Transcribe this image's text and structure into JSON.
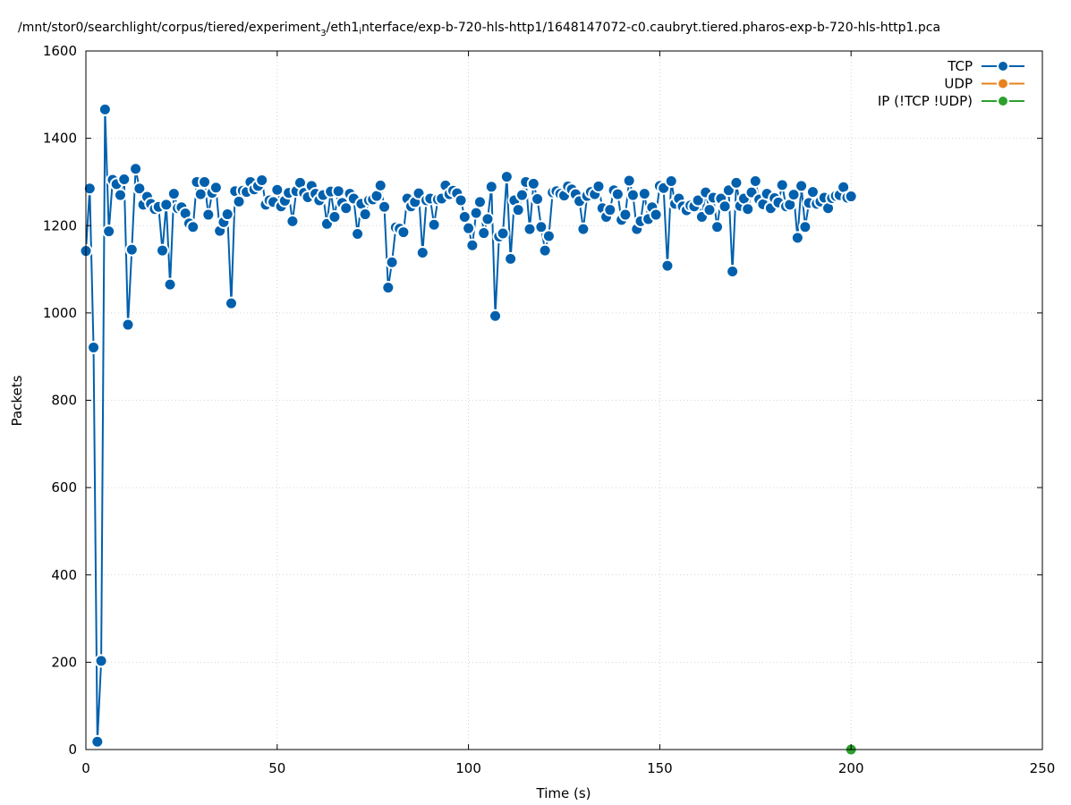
{
  "chart_data": {
    "type": "line",
    "title": "/mnt/stor0/searchlight/corpus/tiered/experiment",
    "title_sub": "3",
    "title_mid": "/eth1",
    "title_sub2": "i",
    "title_end": "nterface/exp-b-720-hls-http1/1648147072-c0.caubryt.tiered.pharos-exp-b-720-hls-http1.pca",
    "xlabel": "Time (s)",
    "ylabel": "Packets",
    "xlim": [
      0,
      250
    ],
    "ylim": [
      0,
      1600
    ],
    "xticks": [
      "0",
      "50",
      "100",
      "150",
      "200",
      "250"
    ],
    "yticks": [
      "0",
      "200",
      "400",
      "600",
      "800",
      "1000",
      "1200",
      "1400",
      "1600"
    ],
    "grid": true,
    "legend_position": "top-right",
    "series": [
      {
        "name": "TCP",
        "color": "#0060ad",
        "x": [
          0,
          1,
          2,
          3,
          4,
          5,
          6,
          7,
          8,
          9,
          10,
          11,
          12,
          13,
          14,
          15,
          16,
          17,
          18,
          19,
          20,
          21,
          22,
          23,
          24,
          25,
          26,
          27,
          28,
          29,
          30,
          31,
          32,
          33,
          34,
          35,
          36,
          37,
          38,
          39,
          40,
          41,
          42,
          43,
          44,
          45,
          46,
          47,
          48,
          49,
          50,
          51,
          52,
          53,
          54,
          55,
          56,
          57,
          58,
          59,
          60,
          61,
          62,
          63,
          64,
          65,
          66,
          67,
          68,
          69,
          70,
          71,
          72,
          73,
          74,
          75,
          76,
          77,
          78,
          79,
          80,
          81,
          82,
          83,
          84,
          85,
          86,
          87,
          88,
          89,
          90,
          91,
          92,
          93,
          94,
          95,
          96,
          97,
          98,
          99,
          100,
          101,
          102,
          103,
          104,
          105,
          106,
          107,
          108,
          109,
          110,
          111,
          112,
          113,
          114,
          115,
          116,
          117,
          118,
          119,
          120,
          121,
          122,
          123,
          124,
          125,
          126,
          127,
          128,
          129,
          130,
          131,
          132,
          133,
          134,
          135,
          136,
          137,
          138,
          139,
          140,
          141,
          142,
          143,
          144,
          145,
          146,
          147,
          148,
          149,
          150,
          151,
          152,
          153,
          154,
          155,
          156,
          157,
          158,
          159,
          160,
          161,
          162,
          163,
          164,
          165,
          166,
          167,
          168,
          169,
          170,
          171,
          172,
          173,
          174,
          175,
          176,
          177,
          178,
          179,
          180,
          181,
          182,
          183,
          184,
          185,
          186,
          187,
          188,
          189,
          190,
          191,
          192,
          193,
          194,
          195,
          196,
          197,
          198,
          199,
          200
        ],
        "values": [
          1142,
          1285,
          921,
          18,
          203,
          1466,
          1187,
          1305,
          1295,
          1270,
          1306,
          973,
          1145,
          1330,
          1285,
          1248,
          1266,
          1250,
          1238,
          1243,
          1143,
          1248,
          1065,
          1273,
          1240,
          1242,
          1228,
          1205,
          1197,
          1300,
          1272,
          1300,
          1225,
          1275,
          1287,
          1188,
          1208,
          1226,
          1022,
          1279,
          1255,
          1280,
          1277,
          1300,
          1283,
          1291,
          1304,
          1248,
          1258,
          1254,
          1282,
          1244,
          1257,
          1275,
          1210,
          1279,
          1298,
          1275,
          1265,
          1291,
          1273,
          1258,
          1270,
          1204,
          1278,
          1220,
          1279,
          1252,
          1240,
          1273,
          1262,
          1181,
          1250,
          1226,
          1258,
          1260,
          1268,
          1292,
          1243,
          1058,
          1116,
          1196,
          1193,
          1185,
          1262,
          1244,
          1254,
          1274,
          1138,
          1258,
          1262,
          1202,
          1260,
          1262,
          1292,
          1272,
          1280,
          1274,
          1258,
          1220,
          1194,
          1155,
          1229,
          1254,
          1183,
          1215,
          1289,
          993,
          1175,
          1182,
          1312,
          1124,
          1258,
          1236,
          1270,
          1300,
          1192,
          1296,
          1261,
          1197,
          1143,
          1176,
          1276,
          1279,
          1273,
          1269,
          1290,
          1283,
          1272,
          1256,
          1192,
          1268,
          1277,
          1272,
          1290,
          1240,
          1220,
          1236,
          1281,
          1272,
          1213,
          1225,
          1303,
          1270,
          1192,
          1210,
          1273,
          1215,
          1242,
          1225,
          1291,
          1286,
          1108,
          1302,
          1250,
          1262,
          1244,
          1235,
          1246,
          1244,
          1258,
          1220,
          1276,
          1236,
          1264,
          1197,
          1262,
          1244,
          1281,
          1095,
          1298,
          1245,
          1262,
          1238,
          1276,
          1302,
          1260,
          1249,
          1273,
          1240,
          1263,
          1253,
          1293,
          1244,
          1248,
          1271,
          1172,
          1291,
          1197,
          1252,
          1277,
          1250,
          1255,
          1264,
          1240,
          1263,
          1268,
          1270,
          1288,
          1264,
          1267
        ]
      },
      {
        "name": "UDP",
        "color": "#e8821e",
        "x": [],
        "values": []
      },
      {
        "name": "IP (!TCP  !UDP)",
        "color": "#2ca02c",
        "x": [
          200
        ],
        "values": [
          0
        ]
      }
    ]
  }
}
